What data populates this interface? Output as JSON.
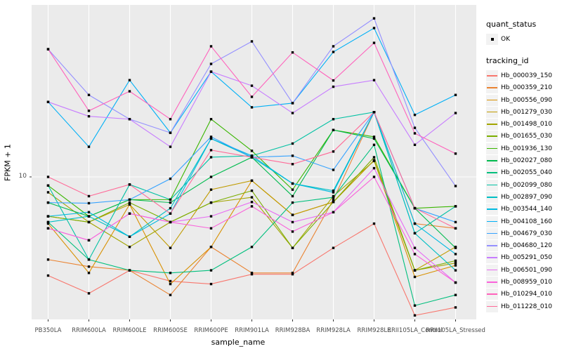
{
  "chart_data": {
    "type": "line",
    "title": "",
    "xlabel": "sample_name",
    "ylabel": "FPKM + 1",
    "y_scale": "log10",
    "y_ticks": [
      "10"
    ],
    "ylim": [
      2,
      60
    ],
    "grid": "major-white-on-gray",
    "panel_bg": "#EBEBEB",
    "grid_color": "#FFFFFF",
    "point_color": "#000000",
    "legend_position": "right",
    "categories": [
      "PB350LA",
      "RRIM600LA",
      "RRIM600LE",
      "RRIM600SE",
      "RRIM600PE",
      "RRIM901LA",
      "RRIM928BA",
      "RRIM928LA",
      "RRIM928LE",
      "RRII105LA_Control",
      "RRII105LA_Stressed"
    ],
    "series": [
      {
        "name": "Hb_000039_150",
        "color": "#F8766D",
        "values": [
          3.4,
          2.8,
          3.6,
          3.2,
          3.1,
          3.45,
          3.45,
          4.6,
          6.0,
          2.2,
          2.4
        ]
      },
      {
        "name": "Hb_000359_210",
        "color": "#EA8331",
        "values": [
          4.05,
          3.75,
          3.6,
          2.75,
          4.65,
          3.5,
          3.5,
          7.8,
          20.3,
          6.0,
          5.7
        ]
      },
      {
        "name": "Hb_000556_090",
        "color": "#D89000",
        "values": [
          6.0,
          3.5,
          7.4,
          3.1,
          4.65,
          9.6,
          6.6,
          7.6,
          12.0,
          3.35,
          3.8
        ]
      },
      {
        "name": "Hb_001279_030",
        "color": "#C09B00",
        "values": [
          6.5,
          6.1,
          7.4,
          4.6,
          8.7,
          9.6,
          6.6,
          7.6,
          12.0,
          3.6,
          4.65
        ]
      },
      {
        "name": "Hb_001498_010",
        "color": "#A3A500",
        "values": [
          8.45,
          6.1,
          4.65,
          6.1,
          7.55,
          8.0,
          4.6,
          8.1,
          11.9,
          3.6,
          3.9
        ]
      },
      {
        "name": "Hb_001655_030",
        "color": "#7CAE00",
        "values": [
          6.5,
          6.1,
          7.55,
          6.1,
          7.55,
          8.6,
          4.6,
          7.6,
          12.4,
          3.6,
          4.0
        ]
      },
      {
        "name": "Hb_001936_130",
        "color": "#39B600",
        "values": [
          9.1,
          6.5,
          7.8,
          7.8,
          18.8,
          13.3,
          8.7,
          16.7,
          15.5,
          7.1,
          7.25
        ]
      },
      {
        "name": "Hb_002027_080",
        "color": "#00BB4E",
        "values": [
          7.55,
          6.5,
          7.8,
          7.55,
          10.0,
          12.4,
          8.1,
          16.7,
          15.2,
          7.1,
          4.6
        ]
      },
      {
        "name": "Hb_002055_040",
        "color": "#00BF7D",
        "values": [
          6.1,
          4.05,
          3.6,
          3.5,
          3.6,
          4.65,
          7.55,
          8.0,
          14.2,
          2.45,
          2.75
        ]
      },
      {
        "name": "Hb_002099_080",
        "color": "#00C1A3",
        "values": [
          9.1,
          4.05,
          9.2,
          7.8,
          12.4,
          12.6,
          14.4,
          18.8,
          20.3,
          5.4,
          7.25
        ]
      },
      {
        "name": "Hb_002897_090",
        "color": "#00BFC4",
        "values": [
          6.1,
          6.5,
          5.2,
          7.1,
          15.2,
          12.4,
          9.3,
          8.6,
          20.3,
          5.4,
          3.6
        ]
      },
      {
        "name": "Hb_003544_140",
        "color": "#00BAE0",
        "values": [
          6.5,
          6.8,
          5.2,
          6.7,
          15.2,
          12.6,
          9.3,
          8.45,
          20.3,
          6.0,
          4.3
        ]
      },
      {
        "name": "Hb_004108_160",
        "color": "#00B0F6",
        "values": [
          22.7,
          13.9,
          28.8,
          16.2,
          31.6,
          21.4,
          22.4,
          39.2,
          50.9,
          19.7,
          24.5
        ]
      },
      {
        "name": "Hb_004679_030",
        "color": "#35A2FF",
        "values": [
          7.55,
          7.5,
          7.8,
          9.8,
          15.5,
          12.4,
          12.6,
          10.8,
          20.3,
          7.1,
          6.1
        ]
      },
      {
        "name": "Hb_004680_120",
        "color": "#9590FF",
        "values": [
          40.4,
          24.5,
          18.8,
          16.2,
          34.4,
          44.0,
          22.4,
          41.7,
          56.6,
          17.1,
          9.05
        ]
      },
      {
        "name": "Hb_005291_050",
        "color": "#C77CFF",
        "values": [
          22.7,
          19.4,
          18.8,
          13.9,
          31.6,
          27.1,
          20.1,
          26.8,
          28.8,
          14.2,
          20.1
        ]
      },
      {
        "name": "Hb_006501_090",
        "color": "#E76BF3",
        "values": [
          5.7,
          5.0,
          6.7,
          6.1,
          6.5,
          7.6,
          6.1,
          6.8,
          11.0,
          4.6,
          3.15
        ]
      },
      {
        "name": "Hb_008959_010",
        "color": "#FA62DB",
        "values": [
          5.7,
          5.0,
          6.7,
          6.1,
          5.7,
          7.25,
          5.5,
          6.8,
          10.0,
          4.3,
          3.15
        ]
      },
      {
        "name": "Hb_010294_010",
        "color": "#FF62BC",
        "values": [
          40.4,
          20.6,
          25.5,
          18.8,
          41.7,
          24.0,
          39.0,
          28.7,
          43.3,
          16.1,
          12.9
        ]
      },
      {
        "name": "Hb_011228_010",
        "color": "#FF6A98",
        "values": [
          10.0,
          8.1,
          9.2,
          6.7,
          13.4,
          12.4,
          11.5,
          13.2,
          20.3,
          7.1,
          5.7
        ]
      }
    ],
    "legend": {
      "quant_status_title": "quant_status",
      "quant_status_items": [
        {
          "label": "OK",
          "symbol": "black-point"
        }
      ],
      "tracking_title": "tracking_id"
    }
  }
}
